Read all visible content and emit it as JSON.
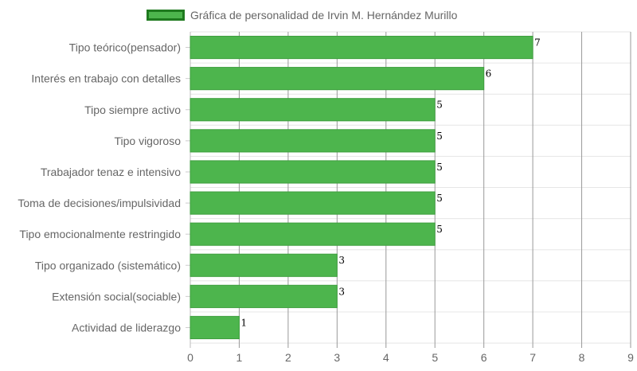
{
  "chart_data": {
    "type": "bar",
    "orientation": "horizontal",
    "legend": {
      "label": "Gráfica de personalidad de Irvin M. Hernández Murillo",
      "placement": "top-center"
    },
    "categories": [
      "Tipo teórico(pensador)",
      "Interés en trabajo con detalles",
      "Tipo siempre activo",
      "Tipo vigoroso",
      "Trabajador tenaz e intensivo",
      "Toma de decisiones/impulsividad",
      "Tipo emocionalmente restringido",
      "Tipo organizado (sistemático)",
      "Extensión social(sociable)",
      "Actividad de liderazgo"
    ],
    "series": [
      {
        "name": "Gráfica de personalidad de Irvin M. Hernández Murillo",
        "values": [
          7,
          6,
          5,
          5,
          5,
          5,
          5,
          3,
          3,
          1
        ],
        "color": "#4db54d",
        "border_color": "#3f9f3f"
      }
    ],
    "xlim": [
      0,
      9
    ],
    "x_ticks": [
      0,
      1,
      2,
      3,
      4,
      5,
      6,
      7,
      8,
      9
    ],
    "grid": true,
    "data_labels": true
  }
}
